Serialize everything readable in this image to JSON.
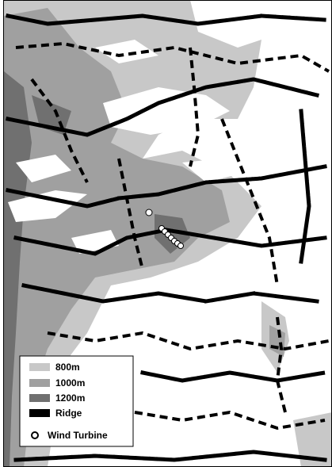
{
  "legend": {
    "items": [
      {
        "label": "800m"
      },
      {
        "label": "1000m"
      },
      {
        "label": "1200m"
      },
      {
        "label": "Ridge"
      },
      {
        "label": "Wind Turbine"
      }
    ]
  }
}
